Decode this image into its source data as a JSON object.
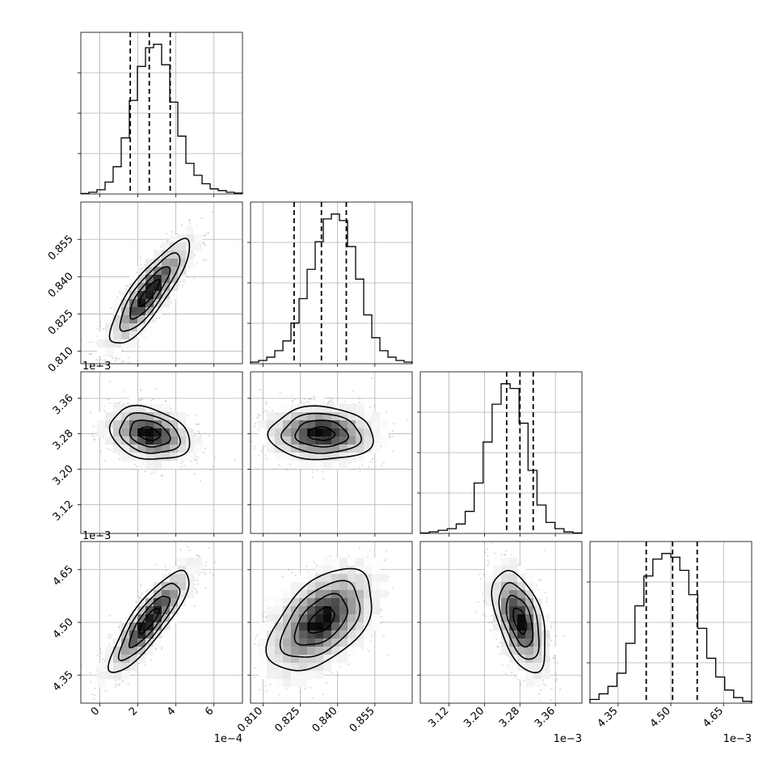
{
  "chart_data": {
    "type": "corner",
    "params": [
      {
        "range": [
          -1,
          7.5
        ],
        "ticks": [
          0,
          2,
          4,
          6
        ],
        "tick_labels": [
          "0",
          "2",
          "4",
          "6"
        ],
        "offset_label": "1e−4"
      },
      {
        "range": [
          0.805,
          0.87
        ],
        "ticks": [
          0.81,
          0.825,
          0.84,
          0.855
        ],
        "tick_labels": [
          "0.810",
          "0.825",
          "0.840",
          "0.855"
        ],
        "offset_label": ""
      },
      {
        "range": [
          3.055,
          3.42
        ],
        "ticks": [
          3.12,
          3.2,
          3.28,
          3.36
        ],
        "tick_labels": [
          "3.12",
          "3.20",
          "3.28",
          "3.36"
        ],
        "offset_label": "1e−3"
      },
      {
        "range": [
          4.27,
          4.73
        ],
        "ticks": [
          4.35,
          4.5,
          4.65
        ],
        "tick_labels": [
          "4.35",
          "4.50",
          "4.65"
        ],
        "offset_label": "1e−3"
      }
    ],
    "quantiles": [
      [
        1.6,
        2.6,
        3.7
      ],
      [
        0.8225,
        0.8335,
        0.8435
      ],
      [
        3.25,
        3.28,
        3.31
      ],
      [
        4.43,
        4.505,
        4.575
      ]
    ],
    "histograms": [
      [
        0.3,
        1.0,
        2.5,
        7.0,
        16,
        33,
        55,
        75,
        86,
        88,
        76,
        54,
        34,
        18,
        11,
        6,
        3,
        2,
        1,
        0.5
      ],
      [
        1,
        2,
        4,
        8,
        14,
        25,
        40,
        58,
        75,
        89,
        92,
        88,
        72,
        52,
        30,
        16,
        8,
        4,
        2,
        1
      ],
      [
        0.3,
        1,
        2,
        3,
        6,
        14,
        32,
        58,
        82,
        95,
        92,
        70,
        40,
        18,
        7,
        3,
        1,
        0.3
      ],
      [
        2,
        5,
        9,
        16,
        32,
        52,
        68,
        77,
        80,
        78,
        71,
        58,
        40,
        24,
        14,
        7,
        3,
        1
      ]
    ],
    "correlations": {
      "1-0": 0.85,
      "2-0": -0.25,
      "2-1": -0.05,
      "3-0": 0.85,
      "3-1": 0.5,
      "3-2": -0.5
    },
    "grid": true,
    "contour_levels_sigma": [
      0.5,
      1.0,
      1.5,
      2.0
    ]
  }
}
